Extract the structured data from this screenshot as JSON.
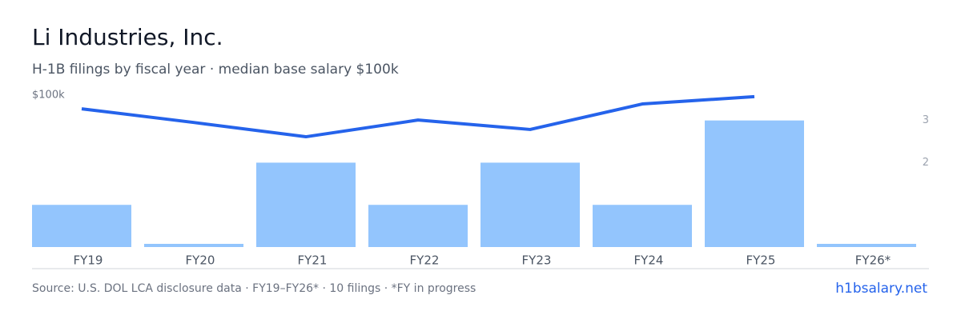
{
  "chart_data": {
    "type": "bar_line",
    "title": "Li Industries, Inc.",
    "subtitle": "H-1B filings by fiscal year · median base salary $100k",
    "categories": [
      "FY19",
      "FY20",
      "FY21",
      "FY22",
      "FY23",
      "FY24",
      "FY25",
      "FY26*"
    ],
    "series": [
      {
        "name": "H-1B filings",
        "type": "bar",
        "axis": "y2",
        "color": "#93c5fd",
        "values": [
          1,
          0,
          2,
          1,
          2,
          1,
          3,
          0
        ]
      },
      {
        "name": "Median base salary",
        "type": "line",
        "color": "#2563eb",
        "values": [
          95500,
          91000,
          86300,
          91800,
          88700,
          97100,
          99500,
          null
        ]
      }
    ],
    "ylim": [
      50000,
      100000
    ],
    "yticks": [
      {
        "value": 100000,
        "label": "$100k"
      }
    ],
    "y2lim": [
      0,
      3.6
    ],
    "y2ticks": [
      2,
      3
    ],
    "source": "Source: U.S. DOL LCA disclosure data · FY19–FY26* · 10 filings · *FY in progress",
    "brand": "h1bsalary.net"
  }
}
